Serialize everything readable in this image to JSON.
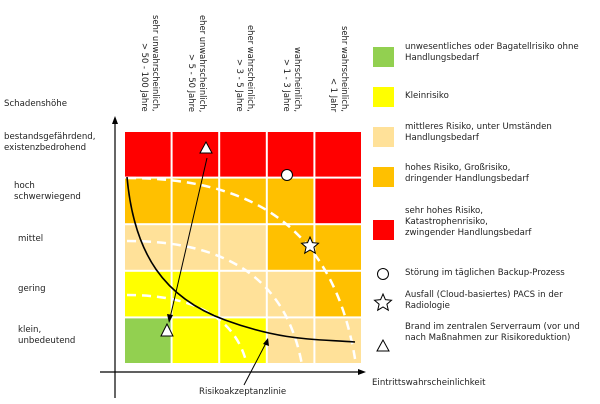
{
  "y_axis_title": "Schadenshöhe",
  "x_axis_title": "Eintrittswahrscheinlichkeit",
  "columns": [
    {
      "line1": "sehr unwahrscheinlich,",
      "line2": "> 50 - 100 Jahre"
    },
    {
      "line1": "eher unwahrscheinlich,",
      "line2": "> 5 - 50 Jahre"
    },
    {
      "line1": "eher wahrscheinlich,",
      "line2": "> 3 - 5 Jahre"
    },
    {
      "line1": "wahrscheinlich,",
      "line2": "> 1 - 3 Jahre"
    },
    {
      "line1": "sehr wahrscheinlich,",
      "line2": "< 1 Jahr"
    }
  ],
  "rows": [
    {
      "line1": "bestandsgefährdend,",
      "line2": "existenzbedrohend"
    },
    {
      "line1": "hoch",
      "line2": "schwerwiegend"
    },
    {
      "line1": "mittel",
      "line2": ""
    },
    {
      "line1": "gering",
      "line2": ""
    },
    {
      "line1": "klein,",
      "line2": "unbedeutend"
    }
  ],
  "matrix_levels": [
    [
      4,
      4,
      4,
      4,
      4
    ],
    [
      3,
      3,
      3,
      3,
      4
    ],
    [
      2,
      2,
      2,
      3,
      3
    ],
    [
      1,
      1,
      2,
      2,
      3
    ],
    [
      0,
      1,
      1,
      2,
      2
    ]
  ],
  "legend": [
    {
      "color": "#92d050",
      "text": "unwesentliches oder Bagatellrisiko ohne Handlungsbedarf"
    },
    {
      "color": "#ffff00",
      "text": "Kleinrisiko"
    },
    {
      "color": "#ffe199",
      "text": "mittleres Risiko, unter Umständen Handlungsbedarf"
    },
    {
      "color": "#ffc000",
      "text": "hohes Risiko, Großrisiko, dringender Handlungsbedarf"
    },
    {
      "color": "#ff0000",
      "text": "sehr hohes Risiko, Katastrophenrisiko, zwingender Handlungsbedarf"
    }
  ],
  "symbols": [
    {
      "icon": "circle",
      "text": "Störung im täglichen Backup-Prozess"
    },
    {
      "icon": "star",
      "text": "Ausfall (Cloud-basiertes) PACS in der Radiologie"
    },
    {
      "icon": "triangle",
      "text": "Brand im zentralen Serverraum (vor und nach Maßnahmen zur Risikoreduktion)"
    }
  ],
  "acceptance_line_label": "Risikoakzeptanzlinie"
}
